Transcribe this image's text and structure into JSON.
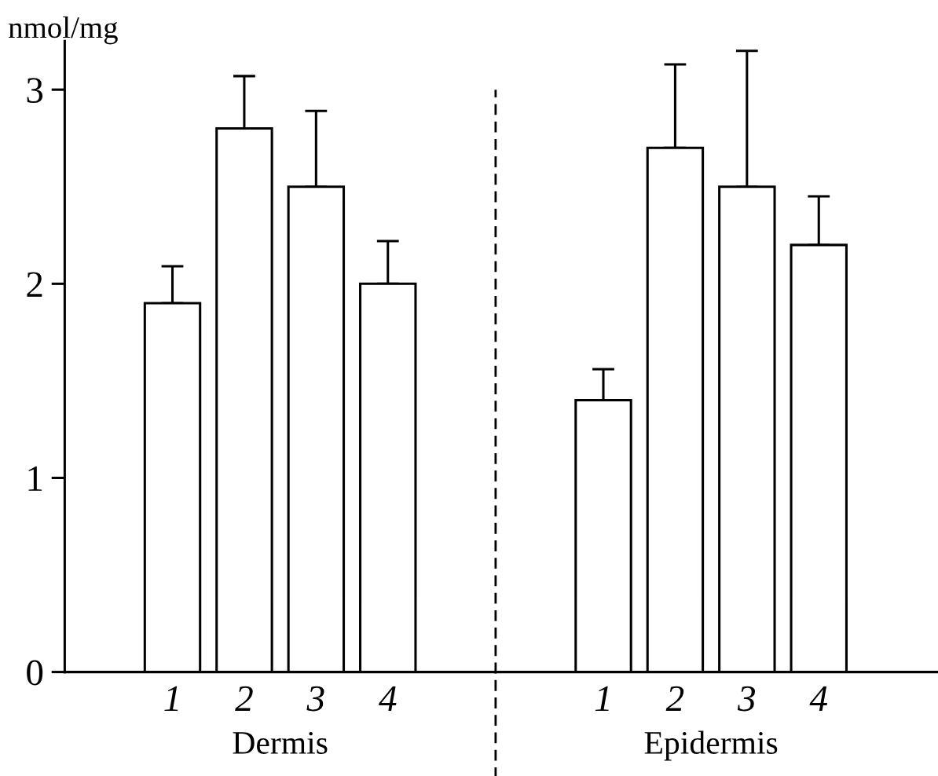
{
  "chart_data": {
    "type": "bar",
    "ylabel": "nmol/mg",
    "categories": [
      "1",
      "2",
      "3",
      "4",
      null,
      null,
      "1",
      "2",
      "3",
      "4"
    ],
    "series": [
      {
        "color": "#ffffff",
        "values": [
          1.9,
          2.8,
          2.5,
          2.0,
          null,
          null,
          1.4,
          2.7,
          2.5,
          2.2
        ],
        "errors": [
          [
            1.9,
            2.09
          ],
          [
            2.8,
            3.07
          ],
          [
            2.5,
            2.89
          ],
          [
            2.0,
            2.22
          ],
          null,
          null,
          [
            1.4,
            1.56
          ],
          [
            2.7,
            3.13
          ],
          [
            2.5,
            3.2
          ],
          [
            2.2,
            2.45
          ]
        ]
      }
    ],
    "ylim": [
      0,
      3.25
    ],
    "yticks": [
      0,
      1,
      2,
      3
    ],
    "annotations": [
      "Dermis",
      "Epidermis"
    ],
    "grid": false,
    "legend": false
  }
}
